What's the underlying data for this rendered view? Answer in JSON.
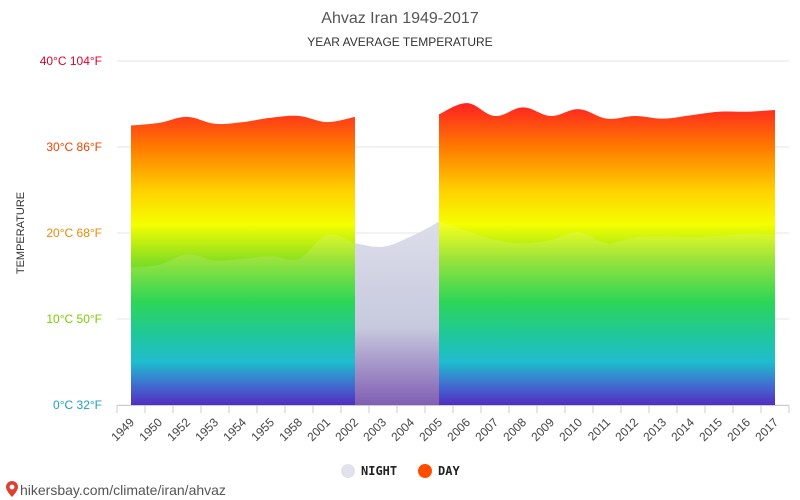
{
  "colors": {
    "day_marker": "#ff4d00",
    "night_marker": "#e2e2ec",
    "grid": "#e6e6e6",
    "gap_fill": "#c8cce0",
    "gradient_stops": [
      {
        "value": 40,
        "color": "#ff0a1e"
      },
      {
        "value": 35,
        "color": "#ff2222"
      },
      {
        "value": 30,
        "color": "#ff7a00"
      },
      {
        "value": 25,
        "color": "#ffd000"
      },
      {
        "value": 21,
        "color": "#f4ff00"
      },
      {
        "value": 17,
        "color": "#8fe020"
      },
      {
        "value": 12,
        "color": "#10d040"
      },
      {
        "value": 8,
        "color": "#00c090"
      },
      {
        "value": 5,
        "color": "#00b4c8"
      },
      {
        "value": 2,
        "color": "#2a4fc8"
      },
      {
        "value": 0,
        "color": "#3a10b8"
      }
    ],
    "ytick_colors": [
      "#1c9fc0",
      "#7ccc00",
      "#ee8800",
      "#ee4400",
      "#e0002a"
    ]
  },
  "source_icon": "map-pin-icon",
  "source_text": "hikersbay.com/climate/iran/ahvaz",
  "chart_data": {
    "type": "area",
    "title": "Ahvaz Iran 1949-2017",
    "subtitle": "YEAR AVERAGE TEMPERATURE",
    "ylabel": "TEMPERATURE",
    "xlabel": "",
    "ylim": [
      0,
      40
    ],
    "yticks": [
      {
        "value": 0,
        "label": "0°C 32°F"
      },
      {
        "value": 10,
        "label": "10°C 50°F"
      },
      {
        "value": 20,
        "label": "20°C 68°F"
      },
      {
        "value": 30,
        "label": "30°C 86°F"
      },
      {
        "value": 40,
        "label": "40°C 104°F"
      }
    ],
    "categories": [
      "1949",
      "1950",
      "1952",
      "1953",
      "1954",
      "1955",
      "1958",
      "2001",
      "2002",
      "2003",
      "2004",
      "2005",
      "2006",
      "2007",
      "2008",
      "2009",
      "2010",
      "2011",
      "2012",
      "2013",
      "2014",
      "2015",
      "2016",
      "2017"
    ],
    "series": [
      {
        "name": "DAY",
        "values": [
          32.5,
          32.8,
          33.5,
          32.7,
          32.9,
          33.4,
          33.6,
          32.9,
          33.5,
          null,
          null,
          33.8,
          35.1,
          33.6,
          34.6,
          33.6,
          34.4,
          33.3,
          33.6,
          33.3,
          33.7,
          34.1,
          34.1,
          34.3
        ]
      },
      {
        "name": "NIGHT",
        "values": [
          16.0,
          16.3,
          17.5,
          16.8,
          17.0,
          17.3,
          17.0,
          19.8,
          18.8,
          18.4,
          19.6,
          21.3,
          20.2,
          19.2,
          18.8,
          19.2,
          20.1,
          18.8,
          19.5,
          19.6,
          19.5,
          19.7,
          19.9,
          19.8
        ]
      }
    ],
    "legend_placement": "bottom-center",
    "grid": true
  }
}
